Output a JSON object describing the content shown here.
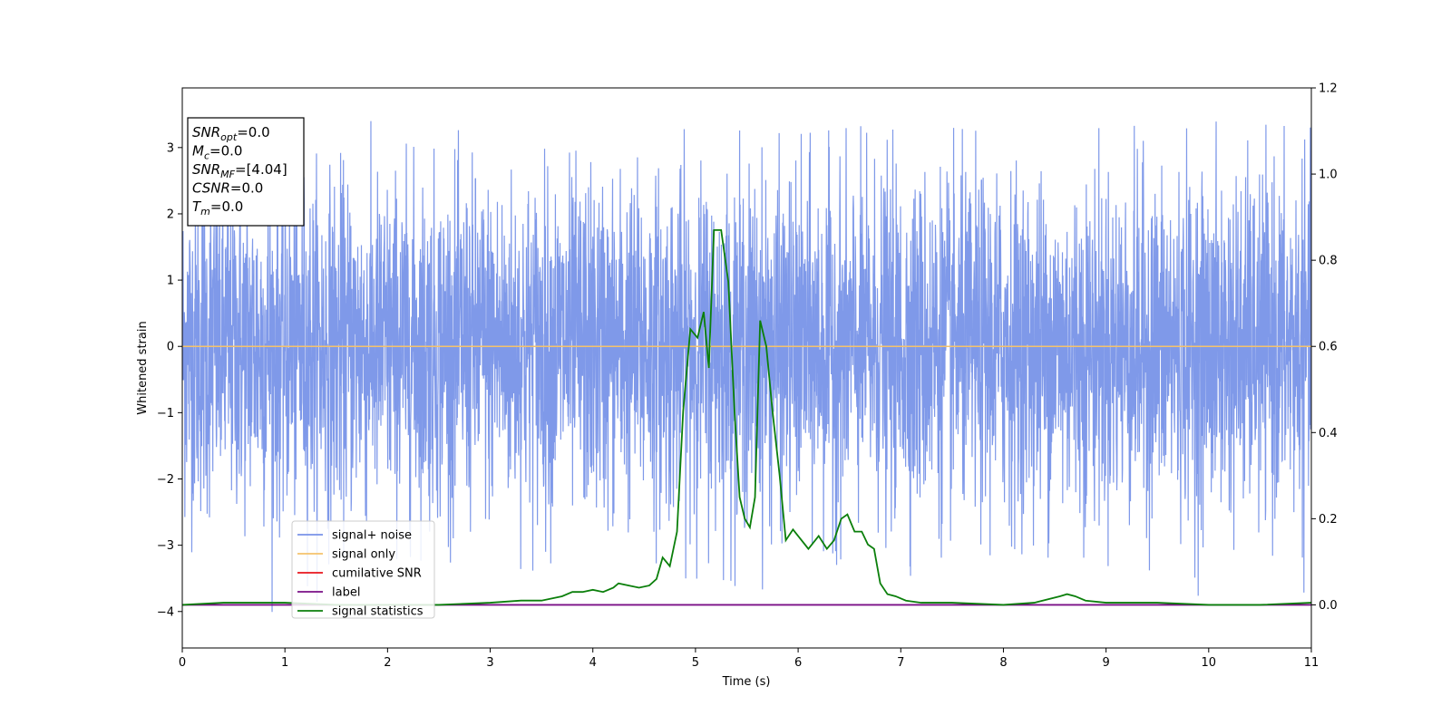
{
  "chart_data": {
    "type": "line",
    "xlabel": "Time (s)",
    "ylabel": "Whitened strain",
    "xlim": [
      0,
      11
    ],
    "ylim": [
      -4.55,
      3.9
    ],
    "ylim_right": [
      -0.1,
      1.2
    ],
    "x_ticks": [
      "0",
      "1",
      "2",
      "3",
      "4",
      "5",
      "6",
      "7",
      "8",
      "9",
      "10",
      "11"
    ],
    "y_ticks": [
      "3",
      "2",
      "1",
      "0",
      "−1",
      "−2",
      "−3",
      "−4"
    ],
    "y_tick_values": [
      3,
      2,
      1,
      0,
      -1,
      -2,
      -3,
      -4
    ],
    "y_right_ticks": [
      "1.2",
      "1.0",
      "0.8",
      "0.6",
      "0.4",
      "0.2",
      "0.0"
    ],
    "y_right_tick_values": [
      1.2,
      1.0,
      0.8,
      0.6,
      0.4,
      0.2,
      0.0
    ],
    "grid": false,
    "legend_position": "lower-left",
    "info_box": {
      "lines": [
        {
          "main": "SNR",
          "sub": "opt",
          "value": "=0.0"
        },
        {
          "main": "M",
          "sub": "c",
          "value": "=0.0"
        },
        {
          "main": "SNR",
          "sub": "MF",
          "value": "=[4.04]"
        },
        {
          "main": "CSNR",
          "sub": "",
          "value": "=0.0"
        },
        {
          "main": "T",
          "sub": "m",
          "value": "=0.0"
        }
      ]
    },
    "series": [
      {
        "name": "signal+ noise",
        "axis": "left",
        "color": "#7893e8",
        "description_only": "dense noise",
        "envelope": {
          "x": [
            0,
            1,
            2,
            3,
            4,
            5,
            6,
            7,
            8,
            9,
            10,
            11
          ],
          "upper": [
            3.0,
            3.4,
            3.4,
            3.2,
            3.1,
            3.3,
            3.2,
            3.4,
            3.2,
            3.3,
            3.4,
            3.3
          ],
          "lower": [
            -3.0,
            -4.15,
            -3.2,
            -3.3,
            -3.5,
            -3.5,
            -3.8,
            -3.5,
            -3.1,
            -3.3,
            -4.0,
            -3.7
          ]
        }
      },
      {
        "name": "signal only",
        "axis": "left",
        "color": "#f5c36c",
        "x": [
          0,
          11
        ],
        "y": [
          0,
          0
        ]
      },
      {
        "name": "cumilative SNR",
        "axis": "right",
        "color": "#e8141b",
        "x": [],
        "y": []
      },
      {
        "name": "label",
        "axis": "right",
        "color": "#7a0f86",
        "x": [
          0,
          11
        ],
        "y": [
          0.0,
          0.0
        ]
      },
      {
        "name": "signal statistics",
        "axis": "right",
        "color": "#0b7f0b",
        "x": [
          0.0,
          0.4,
          1.0,
          1.5,
          2.0,
          2.5,
          3.0,
          3.3,
          3.5,
          3.7,
          3.8,
          3.9,
          4.0,
          4.1,
          4.2,
          4.25,
          4.35,
          4.45,
          4.55,
          4.62,
          4.68,
          4.75,
          4.82,
          4.88,
          4.95,
          5.02,
          5.08,
          5.13,
          5.18,
          5.25,
          5.32,
          5.38,
          5.43,
          5.48,
          5.53,
          5.58,
          5.63,
          5.69,
          5.75,
          5.82,
          5.88,
          5.95,
          6.0,
          6.1,
          6.2,
          6.28,
          6.35,
          6.42,
          6.48,
          6.55,
          6.62,
          6.68,
          6.74,
          6.8,
          6.87,
          6.95,
          7.05,
          7.2,
          7.5,
          8.0,
          8.3,
          8.55,
          8.62,
          8.7,
          8.8,
          9.0,
          9.5,
          10.0,
          10.5,
          11.0
        ],
        "y": [
          0.0,
          0.005,
          0.005,
          0.0,
          0.0,
          0.0,
          0.005,
          0.01,
          0.01,
          0.02,
          0.03,
          0.03,
          0.035,
          0.03,
          0.04,
          0.05,
          0.045,
          0.04,
          0.045,
          0.06,
          0.11,
          0.09,
          0.17,
          0.45,
          0.64,
          0.62,
          0.68,
          0.55,
          0.87,
          0.87,
          0.75,
          0.45,
          0.25,
          0.2,
          0.18,
          0.25,
          0.66,
          0.6,
          0.45,
          0.3,
          0.15,
          0.175,
          0.16,
          0.13,
          0.16,
          0.13,
          0.15,
          0.2,
          0.21,
          0.17,
          0.17,
          0.14,
          0.13,
          0.05,
          0.025,
          0.02,
          0.01,
          0.005,
          0.005,
          0.0,
          0.005,
          0.02,
          0.025,
          0.02,
          0.01,
          0.005,
          0.005,
          0.0,
          0.0,
          0.005
        ]
      }
    ]
  }
}
